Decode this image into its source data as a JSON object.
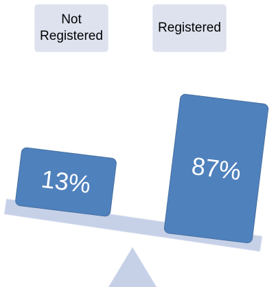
{
  "labels": [
    {
      "text": "Not Registered"
    },
    {
      "text": "Registered"
    }
  ],
  "weights": [
    {
      "text": "13%"
    },
    {
      "text": "87%"
    }
  ]
}
